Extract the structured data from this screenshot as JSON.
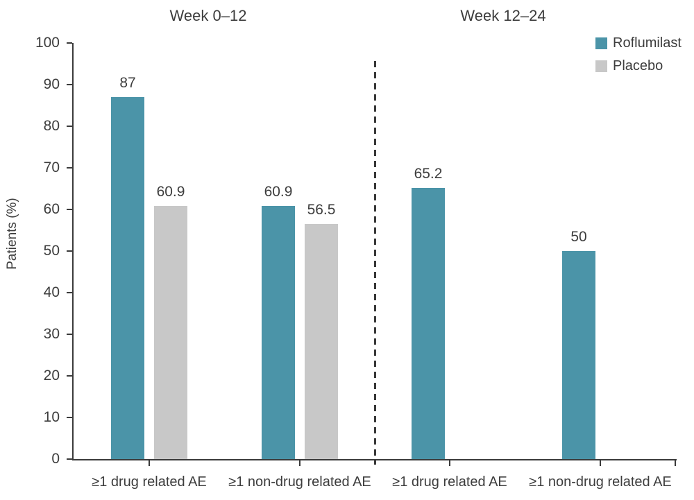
{
  "chart_data": {
    "type": "bar",
    "title": "",
    "ylabel": "Patients (%)",
    "ylim": [
      0,
      100
    ],
    "yticks": [
      0,
      10,
      20,
      30,
      40,
      50,
      60,
      70,
      80,
      90,
      100
    ],
    "grid": false,
    "legend_position": "top-right",
    "series": [
      {
        "name": "Roflumilast",
        "color": "#4b94a8"
      },
      {
        "name": "Placebo",
        "color": "#c8c8c8"
      }
    ],
    "panels": [
      {
        "label": "Week 0–12",
        "groups": [
          {
            "category": "≥1 drug related AE",
            "bars": [
              {
                "series": "Roflumilast",
                "value": 87,
                "label": "87"
              },
              {
                "series": "Placebo",
                "value": 60.9,
                "label": "60.9"
              }
            ]
          },
          {
            "category": "≥1 non-drug related AE",
            "bars": [
              {
                "series": "Roflumilast",
                "value": 60.9,
                "label": "60.9"
              },
              {
                "series": "Placebo",
                "value": 56.5,
                "label": "56.5"
              }
            ]
          }
        ]
      },
      {
        "label": "Week 12–24",
        "groups": [
          {
            "category": "≥1 drug related AE",
            "bars": [
              {
                "series": "Roflumilast",
                "value": 65.2,
                "label": "65.2"
              }
            ]
          },
          {
            "category": "≥1 non-drug related AE",
            "bars": [
              {
                "series": "Roflumilast",
                "value": 50,
                "label": "50"
              }
            ]
          }
        ]
      }
    ],
    "divider": {
      "style": "dashed",
      "color": "#373737"
    },
    "axis_color": "#3a3a3a",
    "text_color": "#3d3d3d"
  }
}
